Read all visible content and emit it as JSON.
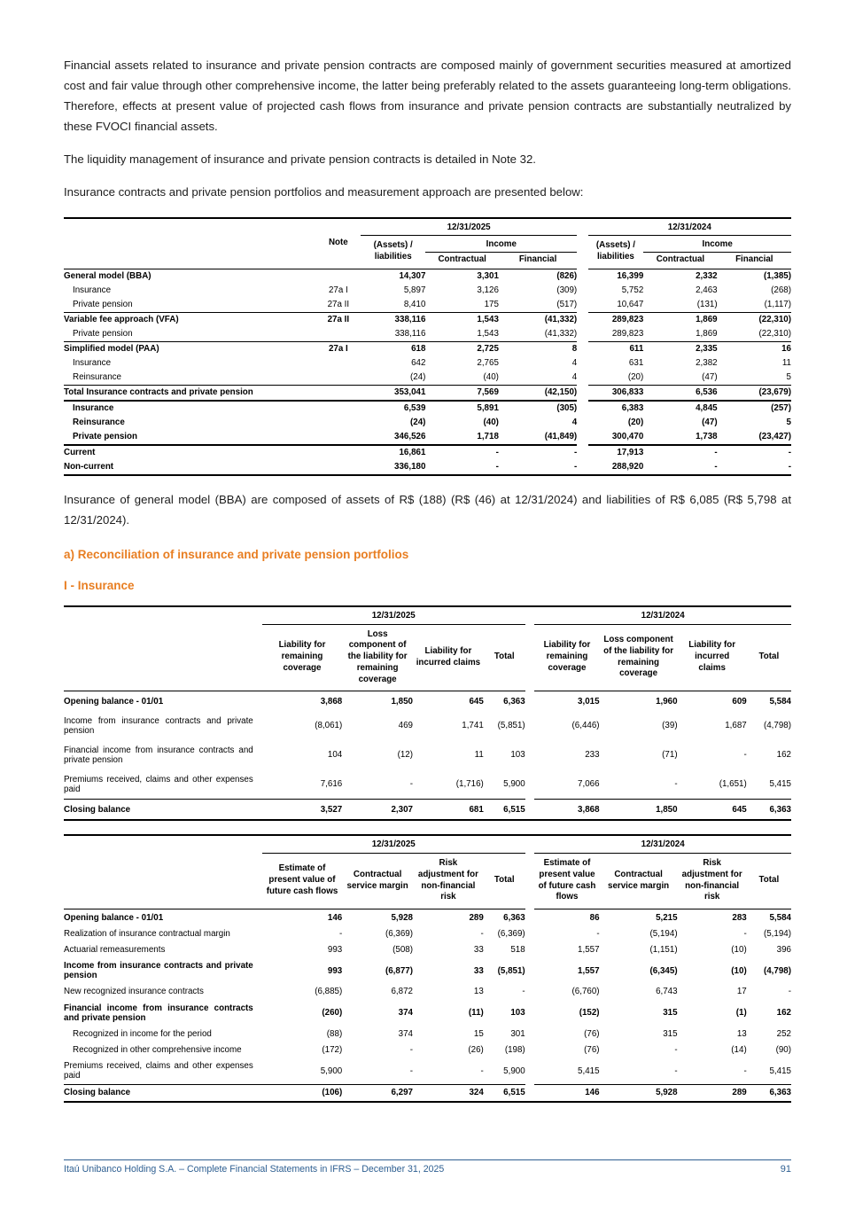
{
  "texts": {
    "p1": "Financial assets related to insurance and private pension contracts are composed mainly of government securities measured at amortized cost and fair value through other comprehensive income, the latter being preferably related to the assets guaranteeing long-term obligations. Therefore, effects at present value of projected cash flows from insurance and private pension contracts are substantially neutralized by these FVOCI financial assets.",
    "p2": "The liquidity management of insurance and private pension contracts is detailed in Note 32.",
    "p3": "Insurance contracts and private pension portfolios and measurement approach are presented below:",
    "p4": "Insurance of general model (BBA) are composed of assets of R$ (188) (R$ (46) at 12/31/2024) and liabilities of R$ 6,085 (R$ 5,798 at 12/31/2024).",
    "heading_a": "a) Reconciliation of insurance and private pension portfolios",
    "heading_i": "I - Insurance"
  },
  "colors": {
    "accent_orange": "#E87E22",
    "footer_blue": "#2E5F91"
  },
  "footer": {
    "left": "Itaú Unibanco Holding S.A. – Complete Financial Statements in IFRS – December 31, 2025",
    "page_number": "91"
  },
  "tables": {
    "measurement": {
      "year_headers": [
        "12/31/2025",
        "12/31/2024"
      ],
      "note_header": "Note",
      "assets_header": "(Assets) / liabilities",
      "income_header": "Income",
      "contractual_header": "Contractual",
      "financial_header": "Financial",
      "rows": [
        {
          "label": "General model (BBA)",
          "style": "bold",
          "note": "",
          "values": [
            "14,307",
            "3,301",
            "(826)",
            "16,399",
            "2,332",
            "(1,385)"
          ]
        },
        {
          "label": "Insurance",
          "style": "indent",
          "note": "27a I",
          "values": [
            "5,897",
            "3,126",
            "(309)",
            "5,752",
            "2,463",
            "(268)"
          ]
        },
        {
          "label": "Private pension",
          "style": "indent",
          "note": "27a II",
          "values": [
            "8,410",
            "175",
            "(517)",
            "10,647",
            "(131)",
            "(1,117)"
          ]
        },
        {
          "label": "Variable fee approach (VFA)",
          "style": "bold",
          "border": "t-thin",
          "note": "27a II",
          "values": [
            "338,116",
            "1,543",
            "(41,332)",
            "289,823",
            "1,869",
            "(22,310)"
          ]
        },
        {
          "label": "Private pension",
          "style": "indent",
          "note": "",
          "values": [
            "338,116",
            "1,543",
            "(41,332)",
            "289,823",
            "1,869",
            "(22,310)"
          ]
        },
        {
          "label": "Simplified model (PAA)",
          "style": "bold",
          "border": "t-thin",
          "note": "27a I",
          "values": [
            "618",
            "2,725",
            "8",
            "611",
            "2,335",
            "16"
          ]
        },
        {
          "label": "Insurance",
          "style": "indent",
          "note": "",
          "values": [
            "642",
            "2,765",
            "4",
            "631",
            "2,382",
            "11"
          ]
        },
        {
          "label": "Reinsurance",
          "style": "indent",
          "note": "",
          "values": [
            "(24)",
            "(40)",
            "4",
            "(20)",
            "(47)",
            "5"
          ]
        },
        {
          "label": "Total Insurance contracts and private pension",
          "style": "bold",
          "border": "t-thin b-thick",
          "note": "",
          "values": [
            "353,041",
            "7,569",
            "(42,150)",
            "306,833",
            "6,536",
            "(23,679)"
          ]
        },
        {
          "label": "Insurance",
          "style": "bold indent",
          "note": "",
          "values": [
            "6,539",
            "5,891",
            "(305)",
            "6,383",
            "4,845",
            "(257)"
          ]
        },
        {
          "label": "Reinsurance",
          "style": "bold indent",
          "note": "",
          "values": [
            "(24)",
            "(40)",
            "4",
            "(20)",
            "(47)",
            "5"
          ]
        },
        {
          "label": "Private pension",
          "style": "bold indent",
          "note": "",
          "values": [
            "346,526",
            "1,718",
            "(41,849)",
            "300,470",
            "1,738",
            "(23,427)"
          ]
        },
        {
          "label": "Current",
          "style": "bold",
          "border": "t-thick",
          "note": "",
          "values": [
            "16,861",
            "-",
            "-",
            "17,913",
            "-",
            "-"
          ]
        },
        {
          "label": "Non-current",
          "style": "bold",
          "note": "",
          "values": [
            "336,180",
            "-",
            "-",
            "288,920",
            "-",
            "-"
          ]
        }
      ]
    },
    "coverage": {
      "year_headers": [
        "12/31/2025",
        "12/31/2024"
      ],
      "col_headers": [
        "Liability for remaining coverage",
        "Loss component of the liability for remaining coverage",
        "Liability for incurred claims",
        "Total"
      ],
      "rows": [
        {
          "label": "Opening balance - 01/01",
          "style": "bold",
          "values": [
            "3,868",
            "1,850",
            "645",
            "6,363",
            "3,015",
            "1,960",
            "609",
            "5,584"
          ]
        },
        {
          "label": "Income from insurance contracts and private pension",
          "values": [
            "(8,061)",
            "469",
            "1,741",
            "(5,851)",
            "(6,446)",
            "(39)",
            "1,687",
            "(4,798)"
          ]
        },
        {
          "label": "Financial income from insurance contracts and private pension",
          "values": [
            "104",
            "(12)",
            "11",
            "103",
            "233",
            "(71)",
            "-",
            "162"
          ]
        },
        {
          "label": "Premiums received, claims and other expenses paid",
          "values": [
            "7,616",
            "-",
            "(1,716)",
            "5,900",
            "7,066",
            "-",
            "(1,651)",
            "5,415"
          ]
        },
        {
          "label": "Closing balance",
          "style": "bold",
          "border": "t-thin",
          "values": [
            "3,527",
            "2,307",
            "681",
            "6,515",
            "3,868",
            "1,850",
            "645",
            "6,363"
          ]
        }
      ]
    },
    "csm": {
      "year_headers": [
        "12/31/2025",
        "12/31/2024"
      ],
      "col_headers": [
        "Estimate of present value of future cash flows",
        "Contractual service margin",
        "Risk adjustment for non-financial risk",
        "Total"
      ],
      "rows": [
        {
          "label": "Opening balance - 01/01",
          "style": "bold",
          "values": [
            "146",
            "5,928",
            "289",
            "6,363",
            "86",
            "5,215",
            "283",
            "5,584"
          ]
        },
        {
          "label": "Realization of insurance contractual margin",
          "values": [
            "-",
            "(6,369)",
            "-",
            "(6,369)",
            "-",
            "(5,194)",
            "-",
            "(5,194)"
          ]
        },
        {
          "label": "Actuarial remeasurements",
          "values": [
            "993",
            "(508)",
            "33",
            "518",
            "1,557",
            "(1,151)",
            "(10)",
            "396"
          ]
        },
        {
          "label": "Income from insurance contracts and private pension",
          "style": "bold",
          "values": [
            "993",
            "(6,877)",
            "33",
            "(5,851)",
            "1,557",
            "(6,345)",
            "(10)",
            "(4,798)"
          ]
        },
        {
          "label": "New recognized insurance contracts",
          "values": [
            "(6,885)",
            "6,872",
            "13",
            "-",
            "(6,760)",
            "6,743",
            "17",
            "-"
          ]
        },
        {
          "label": "Financial income from insurance contracts and private pension",
          "style": "bold",
          "values": [
            "(260)",
            "374",
            "(11)",
            "103",
            "(152)",
            "315",
            "(1)",
            "162"
          ]
        },
        {
          "label": "Recognized in income for the period",
          "style": "indent",
          "values": [
            "(88)",
            "374",
            "15",
            "301",
            "(76)",
            "315",
            "13",
            "252"
          ]
        },
        {
          "label": "Recognized in other comprehensive income",
          "style": "indent",
          "values": [
            "(172)",
            "-",
            "(26)",
            "(198)",
            "(76)",
            "-",
            "(14)",
            "(90)"
          ]
        },
        {
          "label": "Premiums received, claims and other expenses paid",
          "values": [
            "5,900",
            "-",
            "-",
            "5,900",
            "5,415",
            "-",
            "-",
            "5,415"
          ]
        },
        {
          "label": "Closing balance",
          "style": "bold",
          "border": "t-thin",
          "values": [
            "(106)",
            "6,297",
            "324",
            "6,515",
            "146",
            "5,928",
            "289",
            "6,363"
          ]
        }
      ]
    }
  }
}
